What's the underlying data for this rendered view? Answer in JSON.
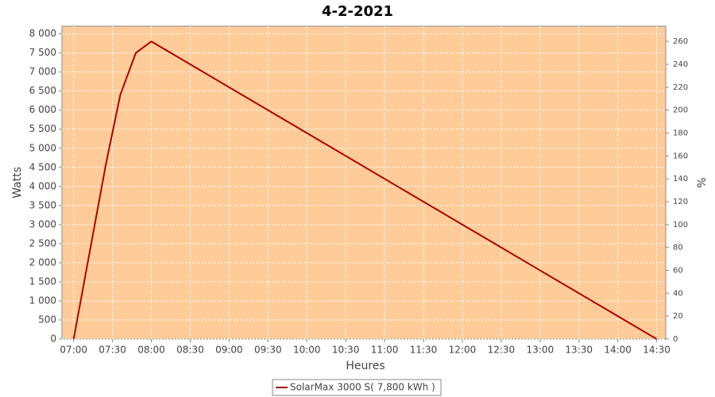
{
  "chart_data": {
    "type": "line",
    "title": "4-2-2021",
    "x_label": "Heures",
    "y_label": "Watts",
    "y2_label": "%",
    "x": [
      "07:00",
      "07:25",
      "07:36",
      "07:48",
      "08:00",
      "14:30"
    ],
    "series": [
      {
        "name": "SolarMax 3000 S( 7,800 kWh )",
        "color": "#b00000",
        "values": [
          0,
          4600,
          6400,
          7500,
          7800,
          0
        ]
      }
    ],
    "xlim": [
      "06:51",
      "14:37"
    ],
    "xticks": [
      "07:00",
      "07:30",
      "08:00",
      "08:30",
      "09:00",
      "09:30",
      "10:00",
      "10:30",
      "11:00",
      "11:30",
      "12:00",
      "12:30",
      "13:00",
      "13:30",
      "14:00",
      "14:30"
    ],
    "ylim": [
      0,
      8200
    ],
    "yticks": [
      0,
      500,
      {
        "value": 1000,
        "label": "1 000"
      },
      {
        "value": 1500,
        "label": "1 500"
      },
      {
        "value": 2000,
        "label": "2 000"
      },
      {
        "value": 2500,
        "label": "2 500"
      },
      {
        "value": 3000,
        "label": "3 000"
      },
      {
        "value": 3500,
        "label": "3 500"
      },
      {
        "value": 4000,
        "label": "4 000"
      },
      {
        "value": 4500,
        "label": "4 500"
      },
      {
        "value": 5000,
        "label": "5 000"
      },
      {
        "value": 5500,
        "label": "5 500"
      },
      {
        "value": 6000,
        "label": "6 000"
      },
      {
        "value": 6500,
        "label": "6 500"
      },
      {
        "value": 7000,
        "label": "7 000"
      },
      {
        "value": 7500,
        "label": "7 500"
      },
      {
        "value": 8000,
        "label": "8 000"
      }
    ],
    "y2lim": [
      0,
      273.3
    ],
    "y2ticks": [
      0,
      20,
      40,
      60,
      80,
      100,
      120,
      140,
      160,
      180,
      200,
      220,
      240,
      260
    ],
    "grid": true,
    "background": "#ffcc99"
  }
}
